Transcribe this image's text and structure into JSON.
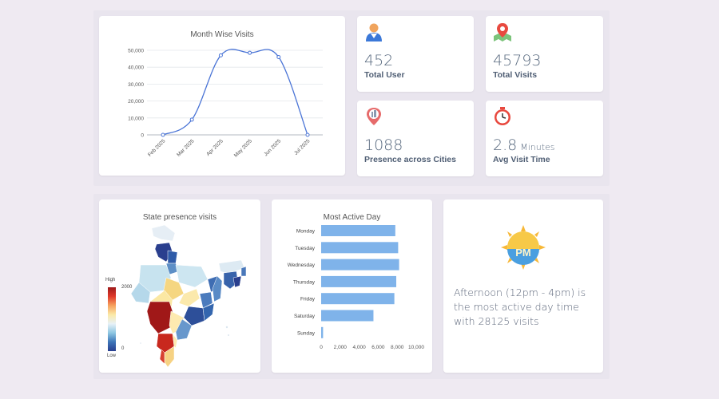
{
  "stats": [
    {
      "value": "452",
      "unit": "",
      "label": "Total User",
      "icon": "user-icon"
    },
    {
      "value": "45793",
      "unit": "",
      "label": "Total Visits",
      "icon": "map-pin-icon"
    },
    {
      "value": "1088",
      "unit": "",
      "label": "Presence across Cities",
      "icon": "city-pin-icon"
    },
    {
      "value": "2.8",
      "unit": "Minutes",
      "label": "Avg Visit Time",
      "icon": "stopwatch-icon"
    }
  ],
  "insight": {
    "text": "Afternoon (12pm - 4pm) is the most active day time with 28125 visits",
    "badge": "PM"
  },
  "map": {
    "title": "State presence visits",
    "legend_high": "High",
    "legend_low": "Low",
    "legend_max": "2000",
    "legend_min": "0"
  },
  "chart_data": [
    {
      "type": "line",
      "title": "Month Wise Visits",
      "categories": [
        "Feb 2025",
        "Mar 2025",
        "Apr 2025",
        "May 2025",
        "Jun 2025",
        "Jul 2025"
      ],
      "values": [
        0,
        9000,
        47000,
        48500,
        46000,
        0
      ],
      "ylim": [
        0,
        50000
      ],
      "yticks": [
        "0",
        "10,000",
        "20,000",
        "30,000",
        "40,000",
        "50,000"
      ],
      "grid": true,
      "color": "#4a74d6"
    },
    {
      "type": "bar",
      "orientation": "horizontal",
      "title": "Most Active Day",
      "categories": [
        "Monday",
        "Tuesday",
        "Wednesday",
        "Thursday",
        "Friday",
        "Saturday",
        "Sunday"
      ],
      "values": [
        7800,
        8100,
        8200,
        7900,
        7700,
        5500,
        200
      ],
      "xlim": [
        0,
        10000
      ],
      "xticks": [
        "0",
        "2,000",
        "4,000",
        "6,000",
        "8,000",
        "10,000"
      ],
      "color": "#7fb3ea"
    }
  ]
}
